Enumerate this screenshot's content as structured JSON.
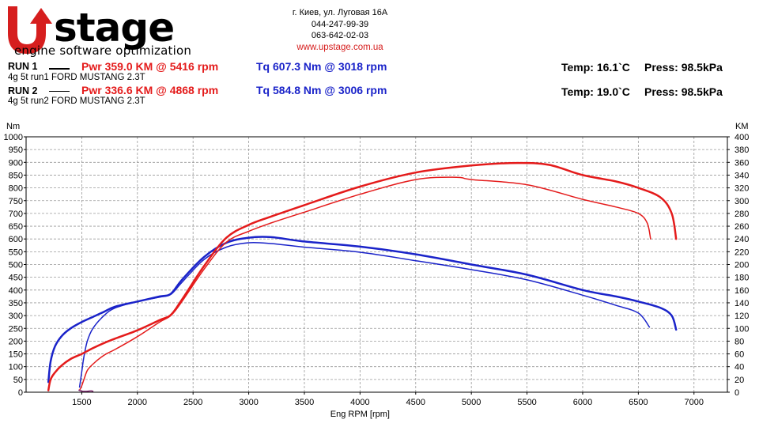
{
  "logo": {
    "brand": "Upstage",
    "tagline": "engine software optimization"
  },
  "contact": {
    "address": "г. Киев, ул. Луговая 16А",
    "phone1": "044-247-99-39",
    "phone2": "063-642-02-03",
    "website": "www.upstage.com.ua"
  },
  "runs": [
    {
      "label": "RUN 1",
      "description": "4g 5t run1 FORD MUSTANG 2.3T",
      "power": "Pwr  359.0 KM @ 5416 rpm",
      "torque": "Tq 607.3 Nm @ 3018 rpm",
      "temp": "Temp: 16.1`C",
      "press": "Press: 98.5kPa"
    },
    {
      "label": "RUN 2",
      "description": "4g 5t run2 FORD MUSTANG 2.3T",
      "power": "Pwr  336.6 KM @ 4868 rpm",
      "torque": "Tq 584.8 Nm @ 3006 rpm",
      "temp": "Temp: 19.0`C",
      "press": "Press: 98.5kPa"
    }
  ],
  "colors": {
    "power": "#e41b1b",
    "torque": "#1a23c9",
    "grid": "#9a9a9a",
    "logo_red": "#d61e1e"
  },
  "chart_data": {
    "type": "line",
    "xlabel": "Eng RPM [rpm]",
    "ylabel_left": "Nm",
    "ylabel_right": "KM",
    "xlim": [
      1000,
      7300
    ],
    "xticks": [
      1500,
      2000,
      2500,
      3000,
      3500,
      4000,
      4500,
      5000,
      5500,
      6000,
      6500,
      7000
    ],
    "ylim_left": [
      0,
      1000
    ],
    "yticks_left": [
      0,
      50,
      100,
      150,
      200,
      250,
      300,
      350,
      400,
      450,
      500,
      550,
      600,
      650,
      700,
      750,
      800,
      850,
      900,
      950,
      1000
    ],
    "ylim_right": [
      0,
      400
    ],
    "yticks_right": [
      0,
      20,
      40,
      60,
      80,
      100,
      120,
      140,
      160,
      180,
      200,
      220,
      240,
      260,
      280,
      300,
      320,
      340,
      360,
      380,
      400
    ],
    "grid": true,
    "series": [
      {
        "axis": "left",
        "quantity": "torque",
        "run": 1,
        "width": 2.5,
        "x": [
          1200,
          1220,
          1260,
          1320,
          1400,
          1500,
          1600,
          1700,
          1800,
          2000,
          2200,
          2300,
          2400,
          2600,
          2800,
          3000,
          3200,
          3500,
          4000,
          4500,
          5000,
          5500,
          6000,
          6300,
          6500,
          6700,
          6800,
          6840
        ],
        "y": [
          40,
          120,
          180,
          220,
          250,
          275,
          295,
          315,
          335,
          355,
          375,
          385,
          440,
          530,
          585,
          605,
          607,
          590,
          570,
          540,
          500,
          460,
          400,
          375,
          355,
          330,
          300,
          245
        ]
      },
      {
        "axis": "left",
        "quantity": "torque",
        "run": 2,
        "width": 1.5,
        "x": [
          1480,
          1500,
          1520,
          1550,
          1600,
          1700,
          1800,
          2000,
          2200,
          2300,
          2400,
          2600,
          2800,
          3000,
          3200,
          3500,
          4000,
          4500,
          5000,
          5500,
          6000,
          6300,
          6500,
          6600
        ],
        "y": [
          20,
          80,
          140,
          200,
          250,
          300,
          330,
          355,
          372,
          383,
          430,
          520,
          568,
          585,
          582,
          568,
          548,
          515,
          480,
          440,
          380,
          340,
          310,
          255
        ]
      },
      {
        "axis": "right",
        "quantity": "power",
        "run": 1,
        "width": 2.5,
        "x": [
          1200,
          1220,
          1260,
          1320,
          1400,
          1500,
          1600,
          1700,
          1800,
          2000,
          2200,
          2300,
          2400,
          2600,
          2800,
          3000,
          3200,
          3500,
          4000,
          4500,
          5000,
          5416,
          5700,
          6000,
          6300,
          6500,
          6700,
          6800,
          6840
        ],
        "y": [
          3,
          20,
          31,
          42,
          52,
          60,
          69,
          77,
          84,
          97,
          113,
          121,
          145,
          198,
          242,
          262,
          275,
          293,
          322,
          344,
          355,
          359,
          356,
          340,
          330,
          320,
          305,
          280,
          240
        ]
      },
      {
        "axis": "right",
        "quantity": "power",
        "run": 2,
        "width": 1.5,
        "x": [
          1480,
          1500,
          1520,
          1550,
          1600,
          1700,
          1800,
          2000,
          2200,
          2300,
          2400,
          2600,
          2800,
          3000,
          3200,
          3500,
          4000,
          4500,
          4868,
          5000,
          5500,
          6000,
          6300,
          6500,
          6580,
          6610
        ],
        "y": [
          3,
          10,
          20,
          34,
          44,
          58,
          67,
          87,
          110,
          120,
          142,
          193,
          235,
          252,
          265,
          282,
          310,
          333,
          336.6,
          333,
          325,
          302,
          290,
          280,
          265,
          240
        ]
      },
      {
        "axis": "left",
        "quantity": "lead-in",
        "run": 1,
        "width": 1.5,
        "x": [
          1475,
          1500,
          1540,
          1580,
          1600
        ],
        "y": [
          8,
          4,
          3,
          5,
          4
        ]
      }
    ]
  }
}
